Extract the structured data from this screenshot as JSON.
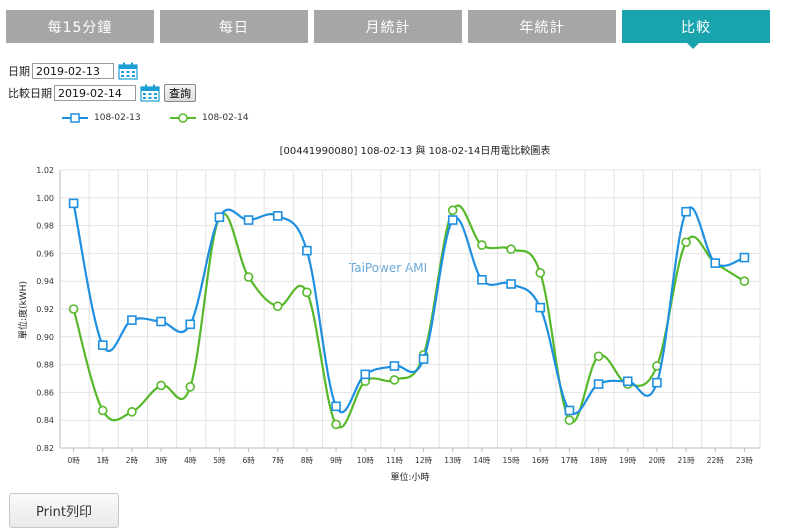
{
  "tabs": [
    {
      "label": "每15分鐘",
      "active": false
    },
    {
      "label": "每日",
      "active": false
    },
    {
      "label": "月統計",
      "active": false
    },
    {
      "label": "年統計",
      "active": false
    },
    {
      "label": "比較",
      "active": true
    }
  ],
  "form": {
    "date_label": "日期",
    "date_value": "2019-02-13",
    "compare_label": "比較日期",
    "compare_value": "2019-02-14",
    "query_label": "查詢"
  },
  "colors": {
    "series1": "#1f8fe0",
    "series2": "#56b82a",
    "tab_active": "#18a3ad",
    "tab_inactive": "#a6a6a6"
  },
  "chart_data": {
    "type": "line",
    "title": "[00441990080] 108-02-13 與 108-02-14日用電比較圖表",
    "watermark": "TaiPower AMI",
    "xlabel": "單位:小時",
    "ylabel": "單位:度(kWH)",
    "ylim": [
      0.82,
      1.02
    ],
    "yticks": [
      "0.82",
      "0.84",
      "0.86",
      "0.88",
      "0.90",
      "0.92",
      "0.94",
      "0.96",
      "0.98",
      "1.00",
      "1.02"
    ],
    "categories": [
      "0時",
      "1時",
      "2時",
      "3時",
      "4時",
      "5時",
      "6時",
      "7時",
      "8時",
      "9時",
      "10時",
      "11時",
      "12時",
      "13時",
      "14時",
      "15時",
      "16時",
      "17時",
      "18時",
      "19時",
      "20時",
      "21時",
      "22時",
      "23時"
    ],
    "grid": true,
    "legend_position": "top-left",
    "series": [
      {
        "name": "108-02-13",
        "marker": "square",
        "values": [
          0.996,
          0.894,
          0.912,
          0.911,
          0.909,
          0.986,
          0.984,
          0.987,
          0.962,
          0.85,
          0.873,
          0.879,
          0.884,
          0.984,
          0.941,
          0.938,
          0.921,
          0.847,
          0.866,
          0.868,
          0.867,
          0.99,
          0.953,
          0.957
        ]
      },
      {
        "name": "108-02-14",
        "marker": "circle",
        "values": [
          0.92,
          0.847,
          0.846,
          0.865,
          0.864,
          0.986,
          0.943,
          0.922,
          0.932,
          0.837,
          0.868,
          0.869,
          0.887,
          0.991,
          0.966,
          0.963,
          0.946,
          0.84,
          0.886,
          0.866,
          0.879,
          0.968,
          0.953,
          0.94
        ]
      }
    ]
  },
  "print_label": "Print列印"
}
